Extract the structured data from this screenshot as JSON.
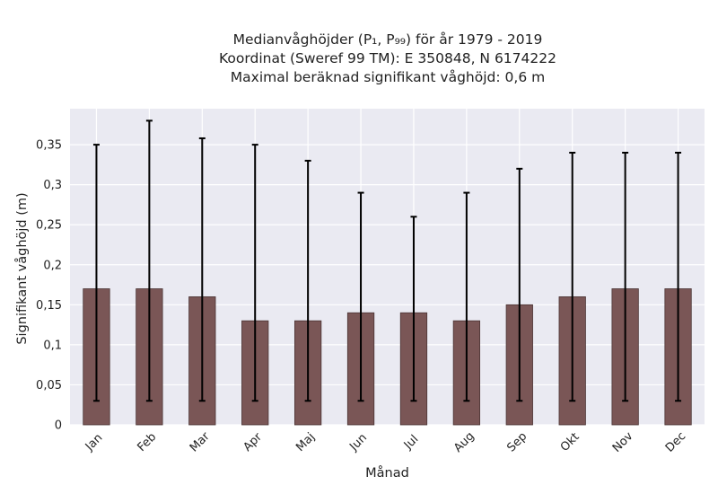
{
  "chart_data": {
    "type": "bar",
    "title_lines": [
      "Medianvåghöjder (P₁, P₉₉) för år 1979 - 2019",
      "Koordinat (Sweref 99 TM): E 350848, N 6174222",
      "Maximal beräknad signifikant våghöjd: 0,6 m"
    ],
    "xlabel": "Månad",
    "ylabel": "Signifikant våghöjd (m)",
    "categories": [
      "Jan",
      "Feb",
      "Mar",
      "Apr",
      "Maj",
      "Jun",
      "Jul",
      "Aug",
      "Sep",
      "Okt",
      "Nov",
      "Dec"
    ],
    "values": [
      0.17,
      0.17,
      0.16,
      0.13,
      0.13,
      0.14,
      0.14,
      0.13,
      0.15,
      0.16,
      0.17,
      0.17
    ],
    "error_low": [
      0.03,
      0.03,
      0.03,
      0.03,
      0.03,
      0.03,
      0.03,
      0.03,
      0.03,
      0.03,
      0.03,
      0.03
    ],
    "error_high": [
      0.35,
      0.38,
      0.358,
      0.35,
      0.33,
      0.29,
      0.26,
      0.29,
      0.32,
      0.34,
      0.34,
      0.34
    ],
    "ylim": [
      0,
      0.395
    ],
    "yticks": [
      0,
      0.05,
      0.1,
      0.15,
      0.2,
      0.25,
      0.3,
      0.35
    ],
    "ytick_labels": [
      "0",
      "0,05",
      "0,1",
      "0,15",
      "0,2",
      "0,25",
      "0,3",
      "0,35"
    ],
    "grid": true,
    "colors": {
      "bar": "#7a5656",
      "bar_edge": "#4a3434",
      "error": "#000000",
      "plot_bg": "#eaeaf2",
      "grid": "#ffffff"
    }
  }
}
